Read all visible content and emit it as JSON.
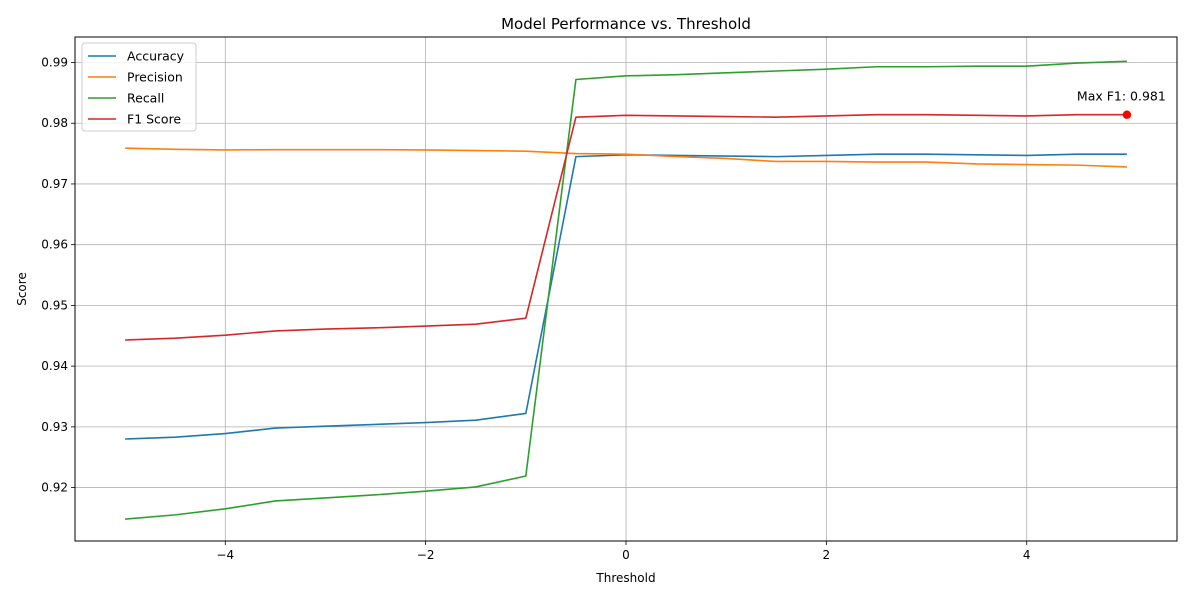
{
  "chart_data": {
    "type": "line",
    "title": "Model Performance vs. Threshold",
    "xlabel": "Threshold",
    "ylabel": "Score",
    "xlim": [
      -5.5,
      5.5
    ],
    "ylim": [
      0.9112,
      0.9942
    ],
    "xticks": [
      -4,
      -2,
      0,
      2,
      4
    ],
    "xtick_labels": [
      "−4",
      "−2",
      "0",
      "2",
      "4"
    ],
    "yticks": [
      0.92,
      0.93,
      0.94,
      0.95,
      0.96,
      0.97,
      0.98,
      0.99
    ],
    "ytick_labels": [
      "0.92",
      "0.93",
      "0.94",
      "0.95",
      "0.96",
      "0.97",
      "0.98",
      "0.99"
    ],
    "grid": true,
    "legend_position": "top-left",
    "x": [
      -5,
      -4.5,
      -4,
      -3.5,
      -3,
      -2.5,
      -2,
      -1.5,
      -1,
      -0.5,
      0,
      0.5,
      1,
      1.5,
      2,
      2.5,
      3,
      3.5,
      4,
      4.5,
      5
    ],
    "series": [
      {
        "name": "Accuracy",
        "color": "#1f77b4",
        "values": [
          0.928,
          0.9283,
          0.9289,
          0.9298,
          0.9301,
          0.9304,
          0.9307,
          0.9311,
          0.9322,
          0.9745,
          0.9748,
          0.9747,
          0.9746,
          0.9745,
          0.9747,
          0.9749,
          0.9749,
          0.9748,
          0.9747,
          0.9749,
          0.9749
        ]
      },
      {
        "name": "Precision",
        "color": "#ff7f0e",
        "values": [
          0.9759,
          0.9757,
          0.9756,
          0.97565,
          0.97565,
          0.97565,
          0.9756,
          0.9755,
          0.9754,
          0.975,
          0.9749,
          0.9745,
          0.9742,
          0.9737,
          0.9737,
          0.9736,
          0.9736,
          0.9733,
          0.9732,
          0.9731,
          0.9728
        ]
      },
      {
        "name": "Recall",
        "color": "#2ca02c",
        "values": [
          0.9148,
          0.9155,
          0.9165,
          0.9178,
          0.9183,
          0.9188,
          0.9194,
          0.9201,
          0.9219,
          0.9872,
          0.9878,
          0.988,
          0.9883,
          0.9886,
          0.9889,
          0.9893,
          0.9893,
          0.9894,
          0.9894,
          0.9899,
          0.9902
        ]
      },
      {
        "name": "F1 Score",
        "color": "#d62728",
        "values": [
          0.9443,
          0.9446,
          0.9451,
          0.9458,
          0.9461,
          0.9463,
          0.9466,
          0.9469,
          0.9479,
          0.981,
          0.9813,
          0.9812,
          0.9811,
          0.981,
          0.9812,
          0.9814,
          0.9814,
          0.9813,
          0.9812,
          0.9814,
          0.9814
        ]
      }
    ],
    "annotations": [
      {
        "text": "Max F1: 0.981",
        "x": 5,
        "y": 0.9814,
        "color": "#ff0000"
      }
    ]
  }
}
